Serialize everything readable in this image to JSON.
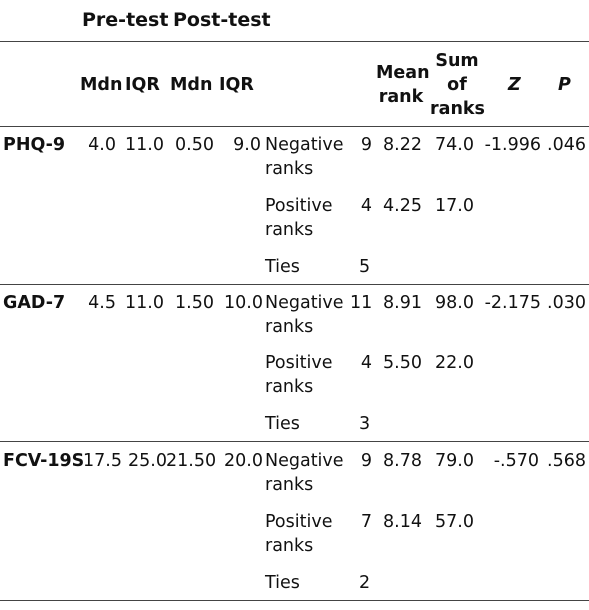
{
  "header": {
    "group_pre": "Pre-test",
    "group_post": "Post-test",
    "mdn1": "Mdn",
    "iqr1": "IQR",
    "mdn2": "Mdn",
    "iqr2": "IQR",
    "mean_rank": [
      "Mean",
      "rank"
    ],
    "sum_of_ranks": [
      "Sum",
      "of",
      "ranks"
    ],
    "z": "Z",
    "p": "P"
  },
  "measures": [
    {
      "name": "PHQ-9",
      "pre_mdn": "4.0",
      "pre_iqr": "11.0",
      "post_mdn": "0.50",
      "post_iqr": "9.0",
      "z": "-1.996",
      "p": ".046",
      "rows": [
        {
          "rank_type": [
            "Negative",
            "ranks"
          ],
          "n": "9",
          "mean_rank": "8.22",
          "sum_ranks": "74.0"
        },
        {
          "rank_type": [
            "Positive",
            "ranks"
          ],
          "n": "4",
          "mean_rank": "4.25",
          "sum_ranks": "17.0"
        },
        {
          "rank_type": [
            "Ties"
          ],
          "n": "5",
          "mean_rank": "",
          "sum_ranks": ""
        }
      ]
    },
    {
      "name": "GAD-7",
      "pre_mdn": "4.5",
      "pre_iqr": "11.0",
      "post_mdn": "1.50",
      "post_iqr": "10.0",
      "z": "-2.175",
      "p": ".030",
      "rows": [
        {
          "rank_type": [
            "Negative",
            "ranks"
          ],
          "n": "11",
          "mean_rank": "8.91",
          "sum_ranks": "98.0"
        },
        {
          "rank_type": [
            "Positive",
            "ranks"
          ],
          "n": "4",
          "mean_rank": "5.50",
          "sum_ranks": "22.0"
        },
        {
          "rank_type": [
            "Ties"
          ],
          "n": "3",
          "mean_rank": "",
          "sum_ranks": ""
        }
      ]
    },
    {
      "name": "FCV-19S",
      "pre_mdn": "17.5",
      "pre_iqr": "25.0",
      "post_mdn": "21.50",
      "post_iqr": "20.0",
      "z": "-.570",
      "p": ".568",
      "rows": [
        {
          "rank_type": [
            "Negative",
            "ranks"
          ],
          "n": "9",
          "mean_rank": "8.78",
          "sum_ranks": "79.0"
        },
        {
          "rank_type": [
            "Positive",
            "ranks"
          ],
          "n": "7",
          "mean_rank": "8.14",
          "sum_ranks": "57.0"
        },
        {
          "rank_type": [
            "Ties"
          ],
          "n": "2",
          "mean_rank": "",
          "sum_ranks": ""
        }
      ]
    }
  ]
}
